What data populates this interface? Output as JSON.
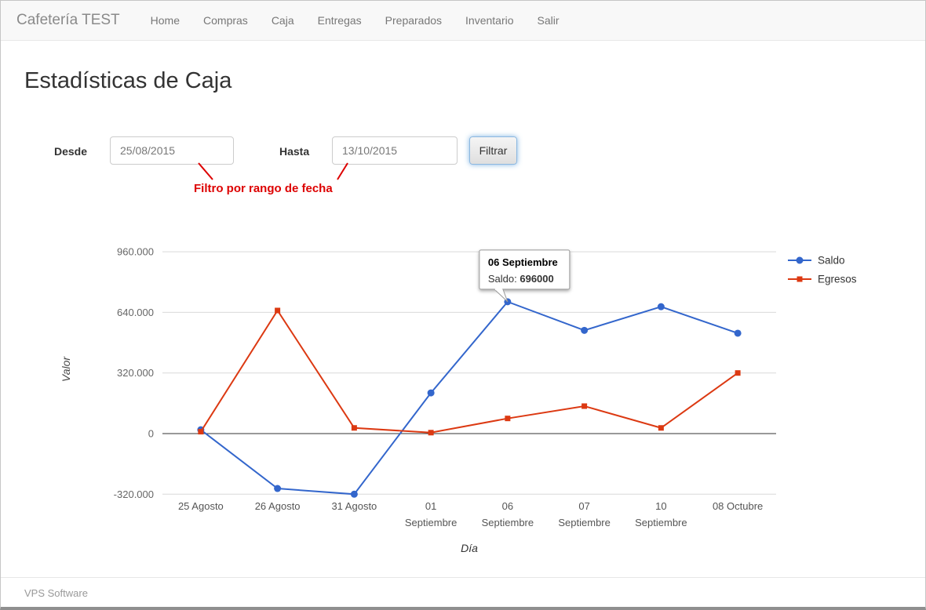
{
  "navbar": {
    "brand": "Cafetería TEST",
    "items": [
      {
        "label": "Home"
      },
      {
        "label": "Compras"
      },
      {
        "label": "Caja"
      },
      {
        "label": "Entregas"
      },
      {
        "label": "Preparados"
      },
      {
        "label": "Inventario"
      },
      {
        "label": "Salir"
      }
    ]
  },
  "page": {
    "title": "Estadísticas de Caja"
  },
  "filter": {
    "desde_label": "Desde",
    "desde_value": "25/08/2015",
    "hasta_label": "Hasta",
    "hasta_value": "13/10/2015",
    "button_label": "Filtrar",
    "annotation": "Filtro por rango de fecha",
    "annotation_color": "#dd0000"
  },
  "chart_data": {
    "type": "line",
    "title": "",
    "xlabel": "Día",
    "ylabel": "Valor",
    "categories": [
      "25 Agosto",
      "26 Agosto",
      "31 Agosto",
      "01 Septiembre",
      "06 Septiembre",
      "07 Septiembre",
      "10 Septiembre",
      "08 Octubre"
    ],
    "series": [
      {
        "name": "Saldo",
        "color": "#3366cc",
        "marker": "circle",
        "values": [
          20000,
          -290000,
          -320000,
          215000,
          696000,
          545000,
          670000,
          530000
        ]
      },
      {
        "name": "Egresos",
        "color": "#dc3912",
        "marker": "square",
        "values": [
          10000,
          650000,
          30000,
          5000,
          80000,
          145000,
          30000,
          320000
        ]
      }
    ],
    "yticks": [
      -320000,
      0,
      320000,
      640000,
      960000
    ],
    "ytick_labels": [
      "-320.000",
      "0",
      "320.000",
      "640.000",
      "960.000"
    ],
    "ylim": [
      -340000,
      1000000
    ],
    "grid": true,
    "legend_position": "right",
    "tooltip": {
      "title": "06 Septiembre",
      "label": "Saldo:",
      "value": "696000",
      "series_index": 0,
      "point_index": 4
    }
  },
  "footer": {
    "text": "VPS Software"
  }
}
